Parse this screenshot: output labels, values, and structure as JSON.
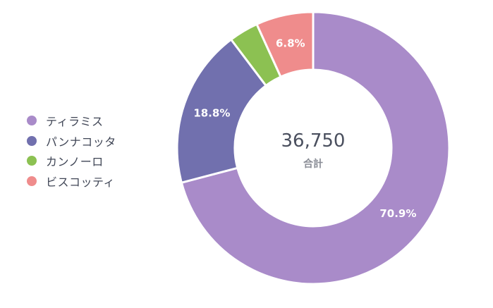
{
  "chart_data": {
    "type": "pie",
    "style": "donut",
    "legend_position": "left",
    "categories": [
      "ティラミス",
      "パンナコッタ",
      "カンノーロ",
      "ビスコッティ"
    ],
    "values": [
      70.9,
      18.8,
      3.5,
      6.8
    ],
    "value_labels": [
      "70.9%",
      "18.8%",
      "",
      "6.8%"
    ],
    "colors": [
      "#a98bc9",
      "#7170ae",
      "#8cc152",
      "#ef8c8c"
    ],
    "center_value": "36,750",
    "center_label": "合計"
  }
}
